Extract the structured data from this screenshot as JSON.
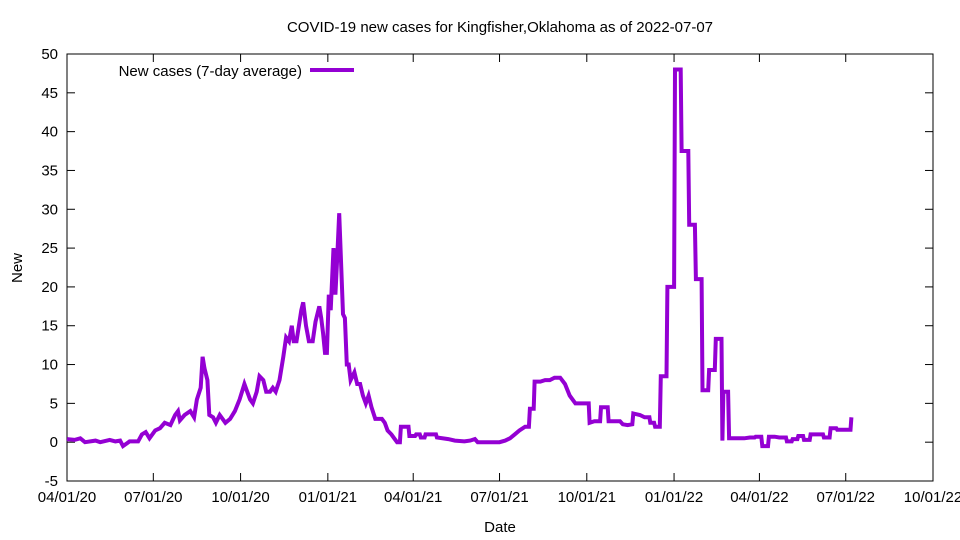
{
  "chart_data": {
    "type": "line",
    "title": "COVID-19 new cases for Kingfisher,Oklahoma as of 2022-07-07",
    "xlabel": "Date",
    "ylabel": "New",
    "ylim": [
      -5,
      50
    ],
    "yticks": [
      -5,
      0,
      5,
      10,
      15,
      20,
      25,
      30,
      35,
      40,
      45,
      50
    ],
    "xlim_days": [
      0,
      913
    ],
    "x_unit": "days since 04/01/20",
    "xticks": [
      {
        "day": 0,
        "label": "04/01/20"
      },
      {
        "day": 91,
        "label": "07/01/20"
      },
      {
        "day": 183,
        "label": "10/01/20"
      },
      {
        "day": 275,
        "label": "01/01/21"
      },
      {
        "day": 365,
        "label": "04/01/21"
      },
      {
        "day": 456,
        "label": "07/01/21"
      },
      {
        "day": 548,
        "label": "10/01/21"
      },
      {
        "day": 640,
        "label": "01/01/22"
      },
      {
        "day": 730,
        "label": "04/01/22"
      },
      {
        "day": 821,
        "label": "07/01/22"
      },
      {
        "day": 913,
        "label": "10/01/22"
      }
    ],
    "grid": false,
    "legend_position": "top-left",
    "series": [
      {
        "name": "New cases (7-day average)",
        "color": "#9400d3",
        "points": [
          [
            0,
            0.4
          ],
          [
            8,
            0.3
          ],
          [
            14,
            0.5
          ],
          [
            19,
            0
          ],
          [
            30,
            0.2
          ],
          [
            35,
            0
          ],
          [
            45,
            0.3
          ],
          [
            51,
            0.1
          ],
          [
            56,
            0.2
          ],
          [
            59,
            -0.5
          ],
          [
            66,
            0.1
          ],
          [
            75,
            0.1
          ],
          [
            79,
            1.0
          ],
          [
            83,
            1.3
          ],
          [
            87,
            0.5
          ],
          [
            93,
            1.5
          ],
          [
            98,
            1.8
          ],
          [
            103,
            2.5
          ],
          [
            109,
            2.2
          ],
          [
            114,
            3.5
          ],
          [
            117,
            4
          ],
          [
            119,
            2.8
          ],
          [
            124,
            3.5
          ],
          [
            130,
            4.0
          ],
          [
            134,
            3.2
          ],
          [
            137,
            5.5
          ],
          [
            141,
            7
          ],
          [
            143,
            11
          ],
          [
            145,
            9.5
          ],
          [
            148,
            8
          ],
          [
            150,
            3.5
          ],
          [
            154,
            3.2
          ],
          [
            157,
            2.5
          ],
          [
            161,
            3.5
          ],
          [
            167,
            2.5
          ],
          [
            172,
            3.0
          ],
          [
            177,
            4.0
          ],
          [
            182,
            5.5
          ],
          [
            187,
            7.5
          ],
          [
            190,
            6.5
          ],
          [
            193,
            5.5
          ],
          [
            196,
            5
          ],
          [
            200,
            6.5
          ],
          [
            203,
            8.5
          ],
          [
            207,
            8
          ],
          [
            210,
            6.5
          ],
          [
            214,
            6.5
          ],
          [
            217,
            7
          ],
          [
            220,
            6.5
          ],
          [
            224,
            8
          ],
          [
            228,
            11
          ],
          [
            231,
            13.5
          ],
          [
            234,
            13
          ],
          [
            237,
            15
          ],
          [
            239,
            13
          ],
          [
            242,
            13
          ],
          [
            247,
            17
          ],
          [
            249,
            18
          ],
          [
            252,
            15
          ],
          [
            255,
            13
          ],
          [
            259,
            13
          ],
          [
            262,
            15.5
          ],
          [
            266,
            17.5
          ],
          [
            268,
            16
          ],
          [
            270,
            14
          ],
          [
            272,
            11.5
          ],
          [
            274,
            11.5
          ],
          [
            276,
            19
          ],
          [
            278,
            17
          ],
          [
            281,
            25
          ],
          [
            283,
            19
          ],
          [
            285,
            24
          ],
          [
            287,
            29.5
          ],
          [
            289,
            23
          ],
          [
            291,
            16.5
          ],
          [
            293,
            16
          ],
          [
            295,
            10
          ],
          [
            297,
            10
          ],
          [
            299,
            8
          ],
          [
            301,
            8.5
          ],
          [
            303,
            9
          ],
          [
            306,
            7.5
          ],
          [
            309,
            7.5
          ],
          [
            312,
            6
          ],
          [
            315,
            5
          ],
          [
            318,
            6
          ],
          [
            321,
            4.5
          ],
          [
            325,
            3
          ],
          [
            328,
            3
          ],
          [
            332,
            3
          ],
          [
            335,
            2.5
          ],
          [
            338,
            1.5
          ],
          [
            342,
            1
          ],
          [
            345,
            0.5
          ],
          [
            348,
            0
          ],
          [
            351,
            0
          ],
          [
            352,
            2
          ],
          [
            360,
            2
          ],
          [
            361,
            0.8
          ],
          [
            367,
            0.8
          ],
          [
            368,
            1.0
          ],
          [
            372,
            1.0
          ],
          [
            373,
            0.6
          ],
          [
            377,
            0.6
          ],
          [
            378,
            1.0
          ],
          [
            389,
            1.0
          ],
          [
            390,
            0.6
          ],
          [
            402,
            0.4
          ],
          [
            409,
            0.2
          ],
          [
            419,
            0.1
          ],
          [
            425,
            0.2
          ],
          [
            430,
            0.4
          ],
          [
            433,
            0
          ],
          [
            446,
            0
          ],
          [
            456,
            0
          ],
          [
            462,
            0.2
          ],
          [
            467,
            0.5
          ],
          [
            472,
            1.0
          ],
          [
            477,
            1.5
          ],
          [
            483,
            2
          ],
          [
            487,
            2
          ],
          [
            488,
            4.3
          ],
          [
            492,
            4.3
          ],
          [
            493,
            7.8
          ],
          [
            499,
            7.8
          ],
          [
            504,
            8.0
          ],
          [
            509,
            8.0
          ],
          [
            514,
            8.3
          ],
          [
            520,
            8.3
          ],
          [
            525,
            7.5
          ],
          [
            530,
            6
          ],
          [
            536,
            5
          ],
          [
            541,
            5
          ],
          [
            546,
            5
          ],
          [
            550,
            5
          ],
          [
            551,
            2.5
          ],
          [
            556,
            2.7
          ],
          [
            562,
            2.7
          ],
          [
            563,
            4.5
          ],
          [
            570,
            4.5
          ],
          [
            571,
            2.7
          ],
          [
            583,
            2.7
          ],
          [
            586,
            2.3
          ],
          [
            591,
            2.2
          ],
          [
            596,
            2.3
          ],
          [
            597,
            3.7
          ],
          [
            604,
            3.5
          ],
          [
            609,
            3.2
          ],
          [
            614,
            3.2
          ],
          [
            615,
            2.5
          ],
          [
            619,
            2.5
          ],
          [
            620,
            2.0
          ],
          [
            625,
            2.0
          ],
          [
            626,
            8.5
          ],
          [
            632,
            8.5
          ],
          [
            633,
            20
          ],
          [
            640,
            20
          ],
          [
            641,
            48
          ],
          [
            647,
            48
          ],
          [
            648,
            37.5
          ],
          [
            655,
            37.5
          ],
          [
            656,
            28
          ],
          [
            662,
            28
          ],
          [
            663,
            21
          ],
          [
            669,
            21
          ],
          [
            670,
            6.7
          ],
          [
            676,
            6.7
          ],
          [
            677,
            9.3
          ],
          [
            683,
            9.3
          ],
          [
            684,
            13.3
          ],
          [
            690,
            13.3
          ],
          [
            691,
            0.2
          ],
          [
            692,
            6.5
          ],
          [
            697,
            6.5
          ],
          [
            698,
            0.5
          ],
          [
            714,
            0.5
          ],
          [
            720,
            0.6
          ],
          [
            725,
            0.6
          ],
          [
            726,
            0.7
          ],
          [
            732,
            0.7
          ],
          [
            733,
            -0.5
          ],
          [
            739,
            -0.5
          ],
          [
            740,
            0.7
          ],
          [
            746,
            0.7
          ],
          [
            751,
            0.6
          ],
          [
            758,
            0.6
          ],
          [
            759,
            0.1
          ],
          [
            764,
            0.1
          ],
          [
            765,
            0.4
          ],
          [
            770,
            0.4
          ],
          [
            771,
            0.8
          ],
          [
            776,
            0.8
          ],
          [
            777,
            0.3
          ],
          [
            783,
            0.3
          ],
          [
            784,
            1.0
          ],
          [
            797,
            1.0
          ],
          [
            798,
            0.6
          ],
          [
            804,
            0.6
          ],
          [
            805,
            1.8
          ],
          [
            811,
            1.8
          ],
          [
            812,
            1.6
          ],
          [
            826,
            1.6
          ],
          [
            827,
            3.2
          ]
        ]
      }
    ]
  }
}
